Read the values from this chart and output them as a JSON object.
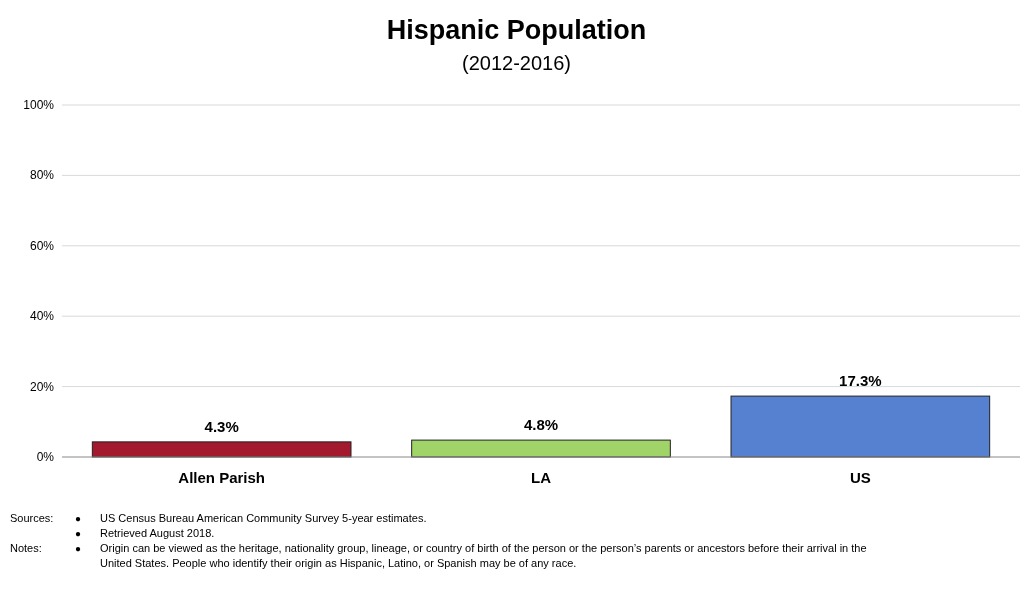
{
  "chart_data": {
    "type": "bar",
    "title": "Hispanic Population",
    "subtitle": "(2012-2016)",
    "categories": [
      "Allen Parish",
      "LA",
      "US"
    ],
    "values": [
      4.3,
      4.8,
      17.3
    ],
    "colors": [
      "#a31a2e",
      "#a0d468",
      "#5680d0"
    ],
    "value_labels": [
      "4.3%",
      "4.8%",
      "17.3%"
    ],
    "ylim": [
      0,
      100
    ],
    "yticks": [
      {
        "value": 0,
        "label": "0%"
      },
      {
        "value": 20,
        "label": "20%"
      },
      {
        "value": 40,
        "label": "40%"
      },
      {
        "value": 60,
        "label": "60%"
      },
      {
        "value": 80,
        "label": "80%"
      },
      {
        "value": 100,
        "label": "100%"
      }
    ],
    "grid": "y",
    "annotations": [
      "Sources:",
      "● US Census Bureau American Community Survey 5-year estimates.",
      "● Retrieved August 2018.",
      "Notes:",
      "● Origin can be viewed as the heritage, nationality group, lineage, or country of birth of the person or the person’s parents or ancestors before their arrival in the United States. People who identify their origin as Hispanic, Latino, or Spanish may be of any race."
    ]
  }
}
